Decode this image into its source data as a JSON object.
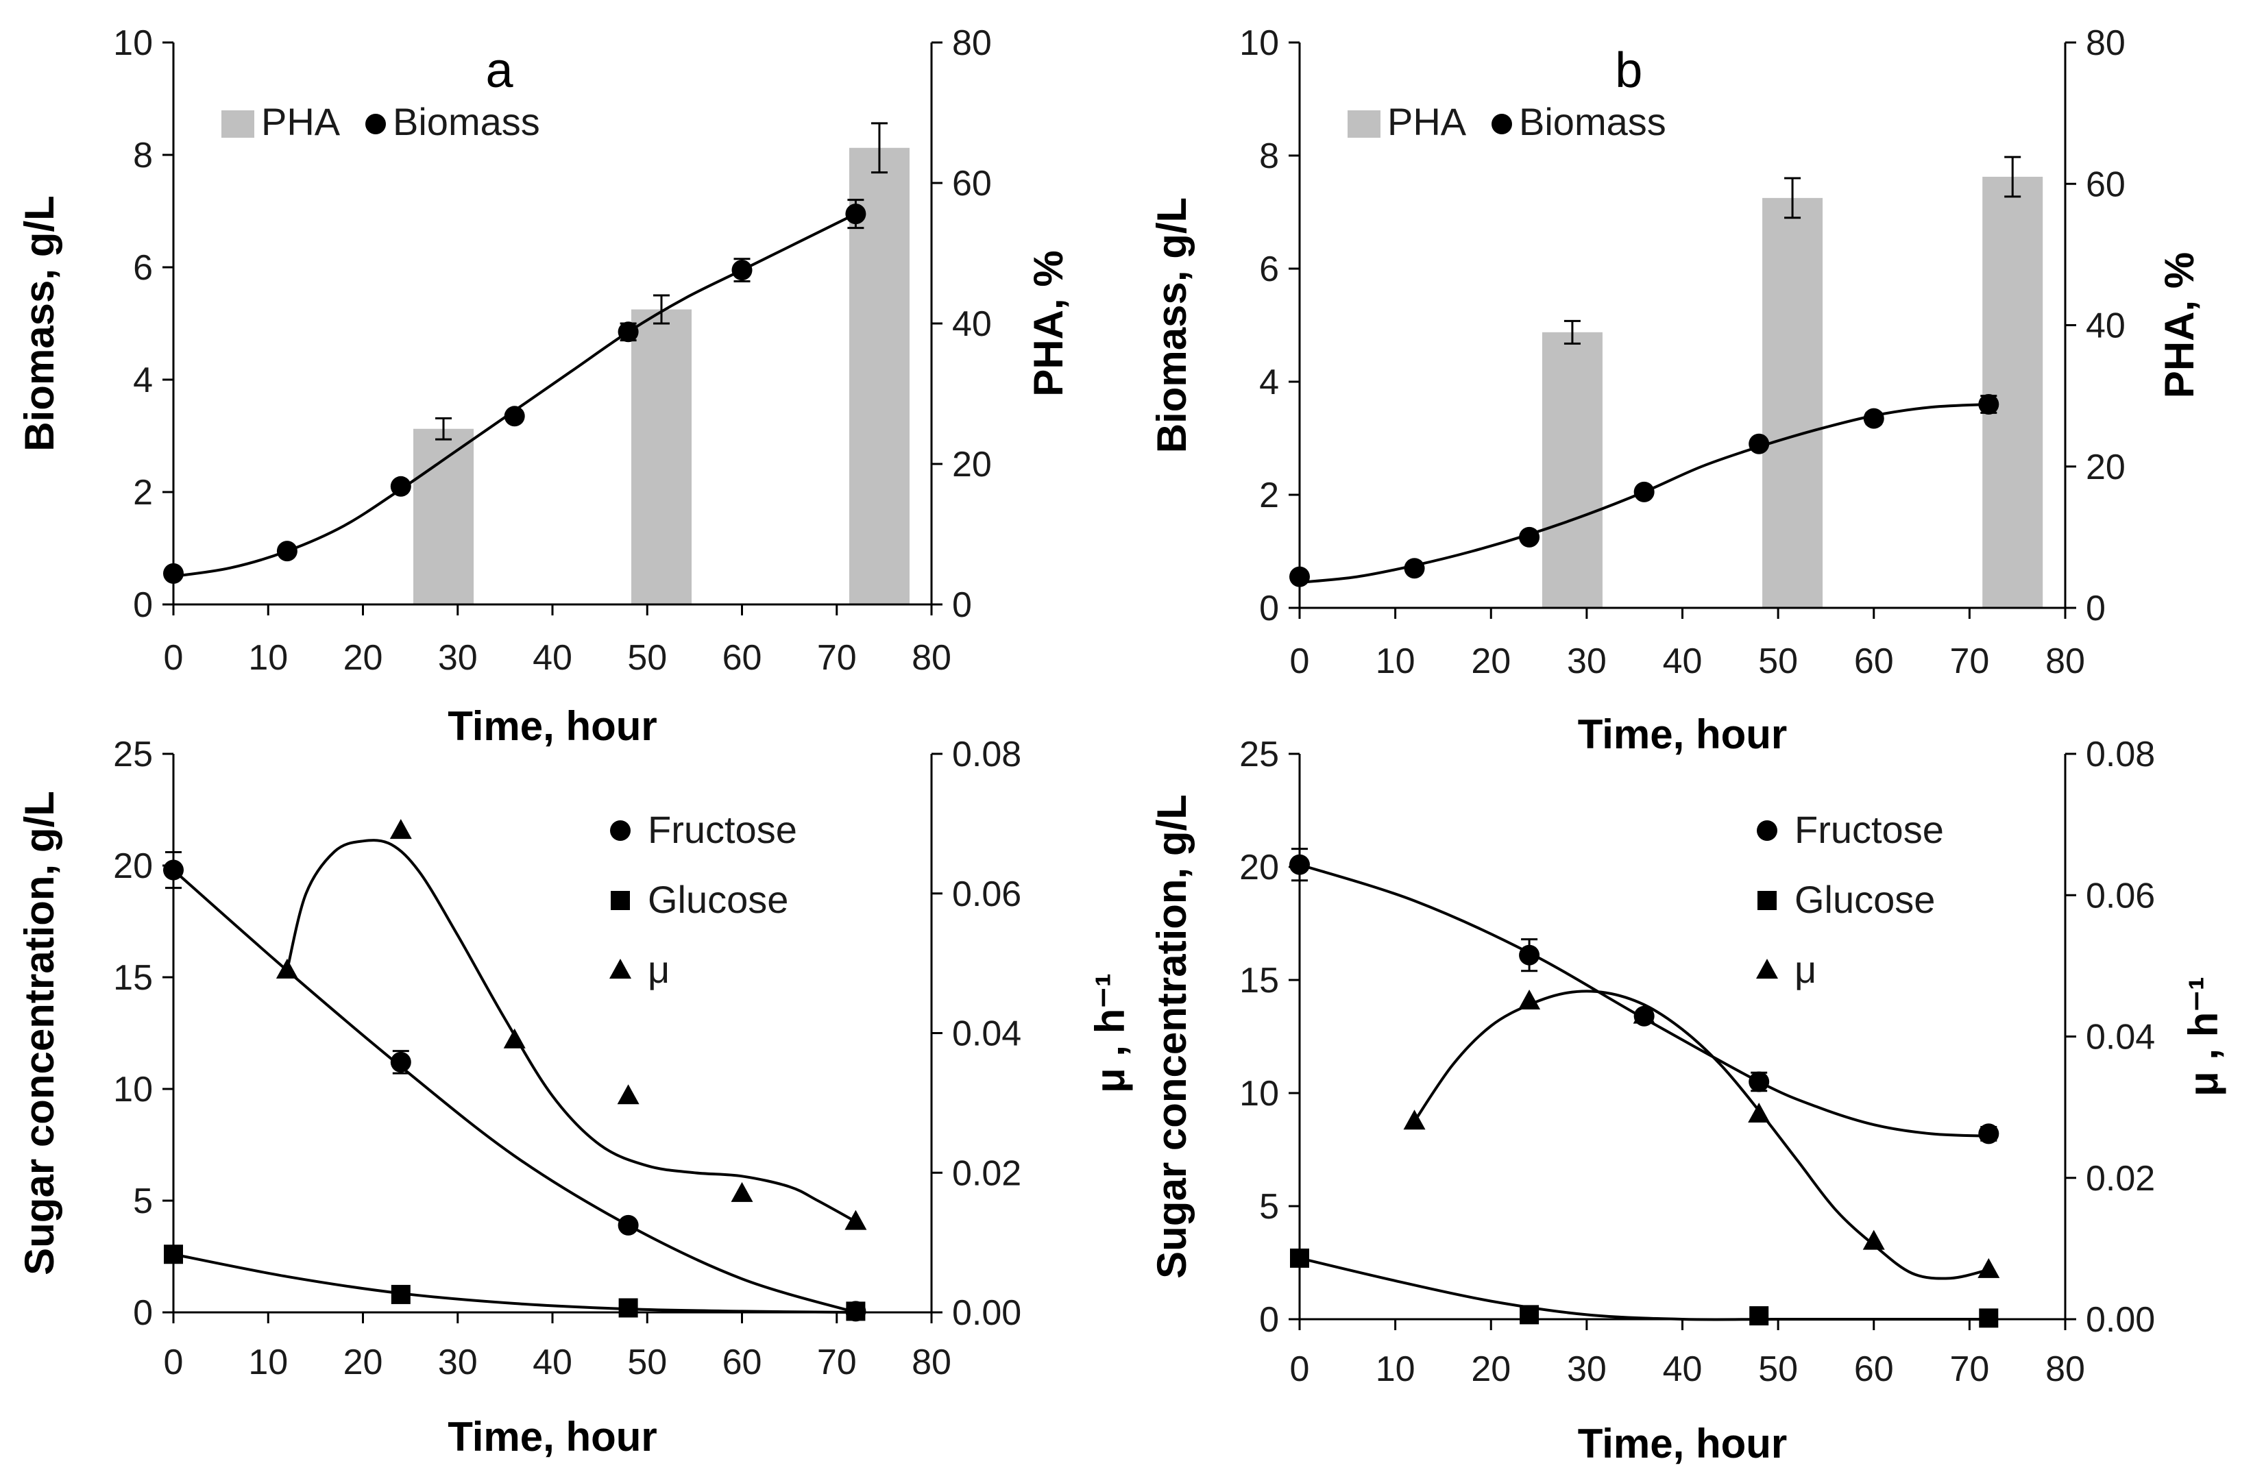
{
  "chart_data": [
    {
      "id": "a-top",
      "type": "bar+scatter",
      "panel_label": "a",
      "xlabel": "Time, hour",
      "ylabel": "Biomass, g/L",
      "y2label": "PHA, %",
      "xlim": [
        0,
        80
      ],
      "ylim": [
        0,
        10
      ],
      "y2lim": [
        0,
        80
      ],
      "xticks": [
        "0",
        "10",
        "20",
        "30",
        "40",
        "50",
        "60",
        "70",
        "80"
      ],
      "yticks": [
        "0",
        "2",
        "4",
        "6",
        "8",
        "10"
      ],
      "y2ticks": [
        "0",
        "20",
        "40",
        "60",
        "80"
      ],
      "legend": [
        {
          "label": "PHA"
        },
        {
          "label": "Biomass"
        }
      ],
      "bars": {
        "name": "PHA",
        "x": [
          28.5,
          51.5,
          74.5
        ],
        "values": [
          25,
          42,
          65
        ],
        "errors": [
          1.5,
          2.0,
          3.5
        ],
        "color": "#c0c0c0"
      },
      "points": {
        "name": "Biomass",
        "x": [
          0,
          12,
          24,
          36,
          48,
          60,
          72
        ],
        "values": [
          0.55,
          0.95,
          2.1,
          3.35,
          4.85,
          5.95,
          6.95
        ],
        "errors": [
          0,
          0,
          0,
          0,
          0.15,
          0.2,
          0.25
        ]
      },
      "curve": {
        "x": [
          0,
          6,
          12,
          18,
          24,
          30,
          36,
          42,
          48,
          54,
          60,
          66,
          72
        ],
        "values": [
          0.5,
          0.65,
          0.95,
          1.4,
          2.05,
          2.75,
          3.45,
          4.15,
          4.85,
          5.45,
          5.95,
          6.45,
          6.95
        ]
      }
    },
    {
      "id": "b-top",
      "type": "bar+scatter",
      "panel_label": "b",
      "xlabel": "Time, hour",
      "ylabel": "Biomass, g/L",
      "y2label": "PHA, %",
      "xlim": [
        0,
        80
      ],
      "ylim": [
        0,
        10
      ],
      "y2lim": [
        0,
        80
      ],
      "xticks": [
        "0",
        "10",
        "20",
        "30",
        "40",
        "50",
        "60",
        "70",
        "80"
      ],
      "yticks": [
        "0",
        "2",
        "4",
        "6",
        "8",
        "10"
      ],
      "y2ticks": [
        "0",
        "20",
        "40",
        "60",
        "80"
      ],
      "legend": [
        {
          "label": "PHA"
        },
        {
          "label": "Biomass"
        }
      ],
      "bars": {
        "name": "PHA",
        "x": [
          28.5,
          51.5,
          74.5
        ],
        "values": [
          39,
          58,
          61
        ],
        "errors": [
          1.6,
          2.8,
          2.8
        ],
        "color": "#c0c0c0"
      },
      "points": {
        "name": "Biomass",
        "x": [
          0,
          12,
          24,
          36,
          48,
          60,
          72
        ],
        "values": [
          0.55,
          0.7,
          1.25,
          2.05,
          2.9,
          3.35,
          3.6
        ],
        "errors": [
          0,
          0,
          0,
          0,
          0,
          0.1,
          0.15
        ]
      },
      "curve": {
        "x": [
          0,
          6,
          12,
          18,
          24,
          30,
          36,
          42,
          48,
          54,
          60,
          66,
          72
        ],
        "values": [
          0.45,
          0.55,
          0.75,
          1.0,
          1.3,
          1.65,
          2.05,
          2.5,
          2.85,
          3.15,
          3.4,
          3.55,
          3.6
        ]
      }
    },
    {
      "id": "a-bottom",
      "type": "scatter+line",
      "xlabel": "Time, hour",
      "ylabel": "Sugar concentration, g/L",
      "y2label": "μ , h⁻¹",
      "xlim": [
        0,
        80
      ],
      "ylim": [
        0,
        25
      ],
      "y2lim": [
        0,
        0.08
      ],
      "xticks": [
        "0",
        "10",
        "20",
        "30",
        "40",
        "50",
        "60",
        "70",
        "80"
      ],
      "yticks": [
        "0",
        "5",
        "10",
        "15",
        "20",
        "25"
      ],
      "y2ticks": [
        "0.00",
        "0.02",
        "0.04",
        "0.06",
        "0.08"
      ],
      "legend": [
        {
          "label": "Fructose"
        },
        {
          "label": "Glucose"
        },
        {
          "label": "μ"
        }
      ],
      "series": [
        {
          "name": "Fructose",
          "marker": "circle",
          "axis": "left",
          "x": [
            0,
            24,
            48,
            72
          ],
          "values": [
            19.8,
            11.2,
            3.9,
            0.05
          ],
          "errors": [
            0.8,
            0.5,
            0,
            0
          ],
          "curve_x": [
            0,
            12,
            24,
            36,
            48,
            60,
            72
          ],
          "curve": [
            19.8,
            15.3,
            11.0,
            7.0,
            3.9,
            1.5,
            0.0
          ]
        },
        {
          "name": "Glucose",
          "marker": "square",
          "axis": "left",
          "x": [
            0,
            24,
            48,
            72
          ],
          "values": [
            2.6,
            0.8,
            0.2,
            0.05
          ],
          "errors": [
            0,
            0,
            0,
            0
          ],
          "curve_x": [
            0,
            12,
            24,
            36,
            48,
            60,
            72
          ],
          "curve": [
            2.6,
            1.6,
            0.85,
            0.4,
            0.15,
            0.05,
            0.0
          ]
        },
        {
          "name": "μ",
          "marker": "triangle",
          "axis": "right",
          "x": [
            12,
            24,
            36,
            48,
            60,
            72
          ],
          "values": [
            0.049,
            0.069,
            0.039,
            0.031,
            0.017,
            0.013
          ],
          "errors": [
            0,
            0,
            0,
            0,
            0,
            0
          ],
          "curve_x": [
            12,
            14,
            17,
            20,
            23,
            26,
            30,
            35,
            40,
            45,
            50,
            55,
            60,
            65,
            68,
            72
          ],
          "curve": [
            0.049,
            0.06,
            0.066,
            0.0675,
            0.067,
            0.063,
            0.054,
            0.042,
            0.031,
            0.024,
            0.021,
            0.02,
            0.0195,
            0.018,
            0.016,
            0.013
          ]
        }
      ]
    },
    {
      "id": "b-bottom",
      "type": "scatter+line",
      "xlabel": "Time, hour",
      "ylabel": "Sugar concentration, g/L",
      "y2label": "μ , h⁻¹",
      "xlim": [
        0,
        80
      ],
      "ylim": [
        0,
        25
      ],
      "y2lim": [
        0,
        0.08
      ],
      "xticks": [
        "0",
        "10",
        "20",
        "30",
        "40",
        "50",
        "60",
        "70",
        "80"
      ],
      "yticks": [
        "0",
        "5",
        "10",
        "15",
        "20",
        "25"
      ],
      "y2ticks": [
        "0.00",
        "0.02",
        "0.04",
        "0.06",
        "0.08"
      ],
      "legend": [
        {
          "label": "Fructose"
        },
        {
          "label": "Glucose"
        },
        {
          "label": "μ"
        }
      ],
      "series": [
        {
          "name": "Fructose",
          "marker": "circle",
          "axis": "left",
          "x": [
            0,
            24,
            36,
            48,
            72
          ],
          "values": [
            20.1,
            16.1,
            13.4,
            10.5,
            8.2
          ],
          "errors": [
            0.7,
            0.7,
            0,
            0.4,
            0.3
          ],
          "curve_x": [
            0,
            12,
            24,
            36,
            48,
            54,
            60,
            66,
            72
          ],
          "curve": [
            20.1,
            18.5,
            16.2,
            13.3,
            10.5,
            9.4,
            8.6,
            8.2,
            8.1
          ]
        },
        {
          "name": "Glucose",
          "marker": "square",
          "axis": "left",
          "x": [
            0,
            24,
            48,
            72
          ],
          "values": [
            2.7,
            0.2,
            0.15,
            0.05
          ],
          "errors": [
            0,
            0,
            0,
            0
          ],
          "curve_x": [
            0,
            10,
            20,
            30,
            40,
            50,
            60,
            72
          ],
          "curve": [
            2.7,
            1.7,
            0.8,
            0.2,
            0.0,
            0.0,
            0.0,
            0.0
          ]
        },
        {
          "name": "μ",
          "marker": "triangle",
          "axis": "right",
          "x": [
            12,
            24,
            36,
            48,
            60,
            72
          ],
          "values": [
            0.028,
            0.045,
            0.043,
            0.029,
            0.011,
            0.007
          ],
          "errors": [
            0,
            0,
            0,
            0,
            0,
            0
          ],
          "curve_x": [
            12,
            16,
            20,
            24,
            28,
            32,
            36,
            40,
            44,
            48,
            52,
            56,
            60,
            64,
            68,
            72
          ],
          "curve": [
            0.028,
            0.036,
            0.0415,
            0.0445,
            0.0462,
            0.0462,
            0.0445,
            0.041,
            0.036,
            0.0295,
            0.0225,
            0.0155,
            0.0105,
            0.0065,
            0.0058,
            0.007
          ]
        }
      ]
    }
  ]
}
